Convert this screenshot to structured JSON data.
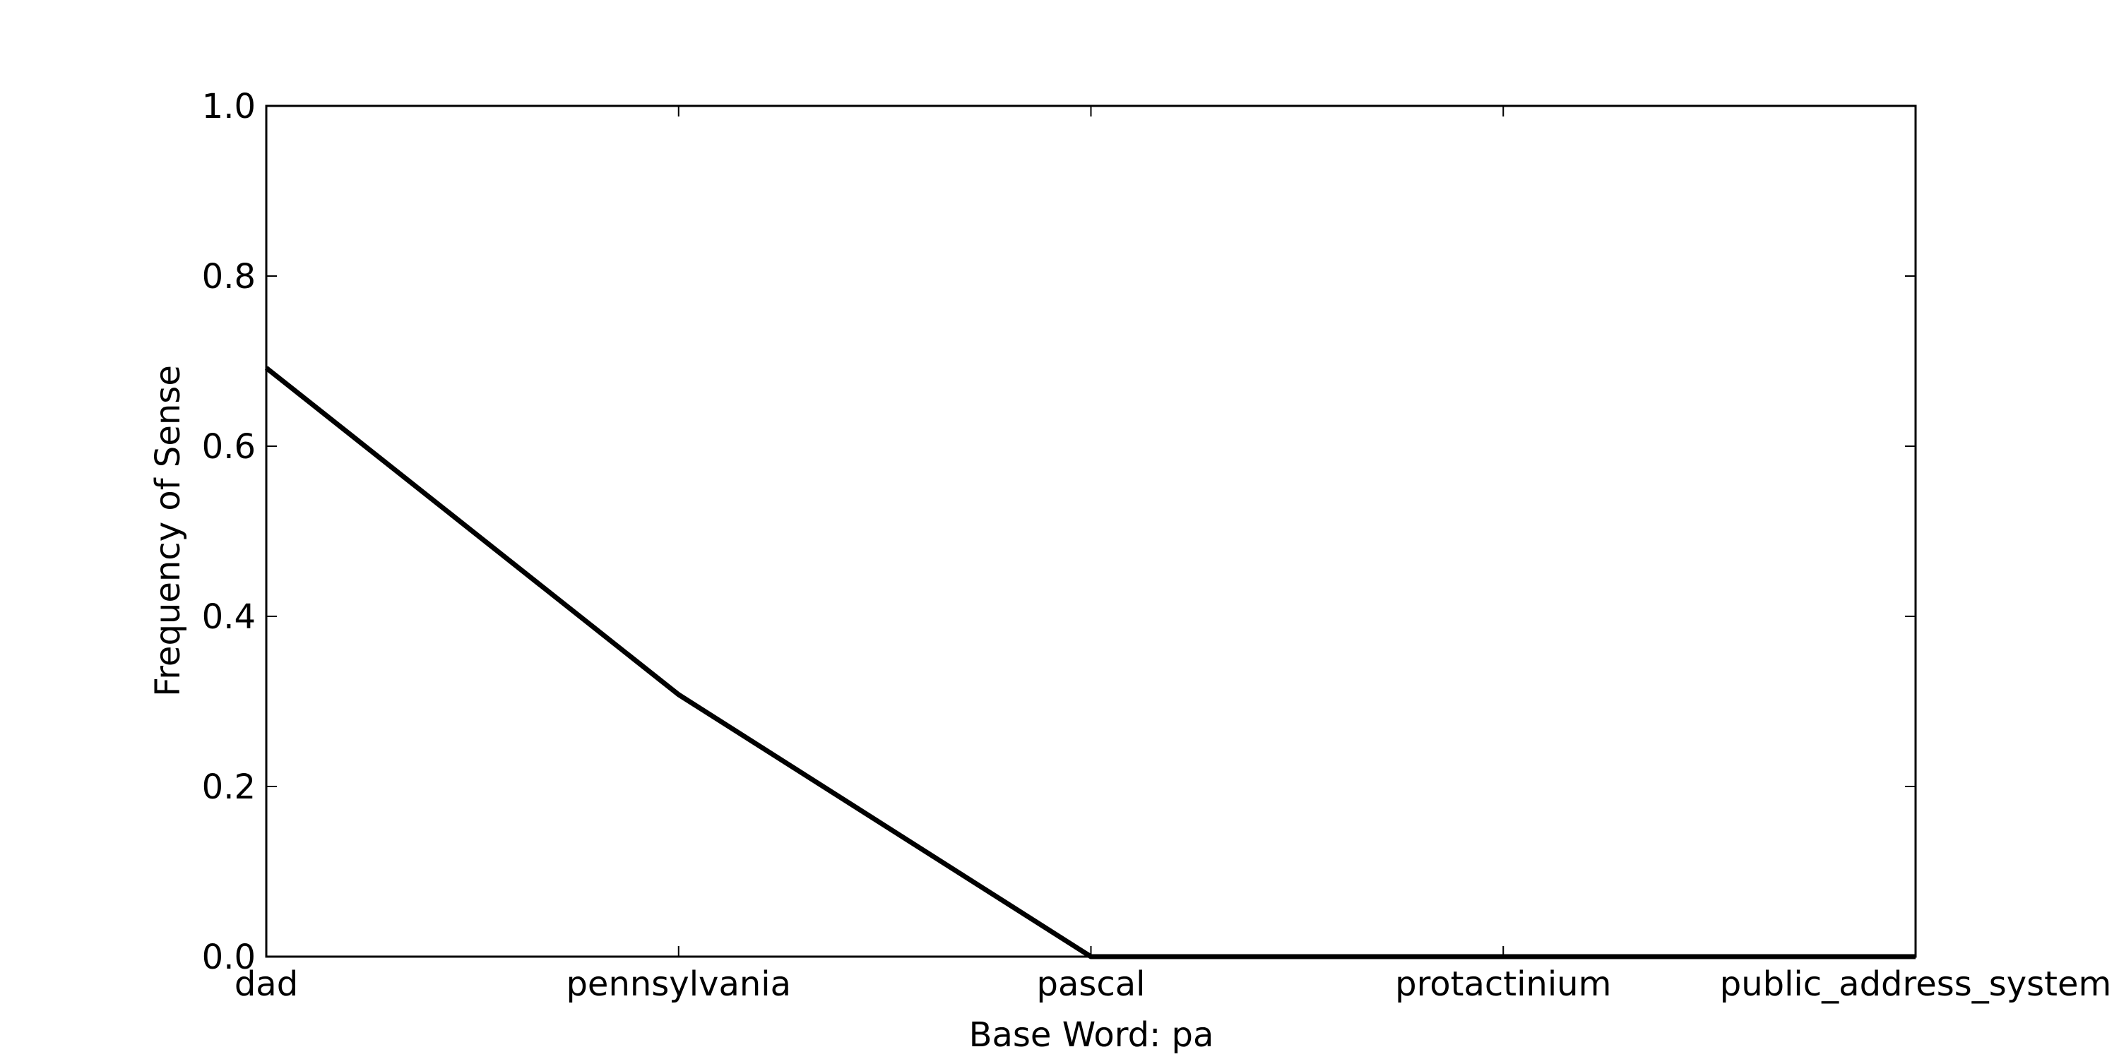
{
  "chart_data": {
    "type": "line",
    "categories": [
      "dad",
      "pennsylvania",
      "pascal",
      "protactinium",
      "public_address_system"
    ],
    "series": [
      {
        "values": [
          0.692,
          0.308,
          0.0,
          0.0,
          0.0
        ]
      }
    ],
    "xlabel": "Base Word: pa",
    "ylabel": "Frequency of Sense",
    "ylim": [
      0.0,
      1.0
    ],
    "yticks": [
      "0.0",
      "0.2",
      "0.4",
      "0.6",
      "0.8",
      "1.0"
    ],
    "grid": false,
    "line_color": "#000000"
  }
}
